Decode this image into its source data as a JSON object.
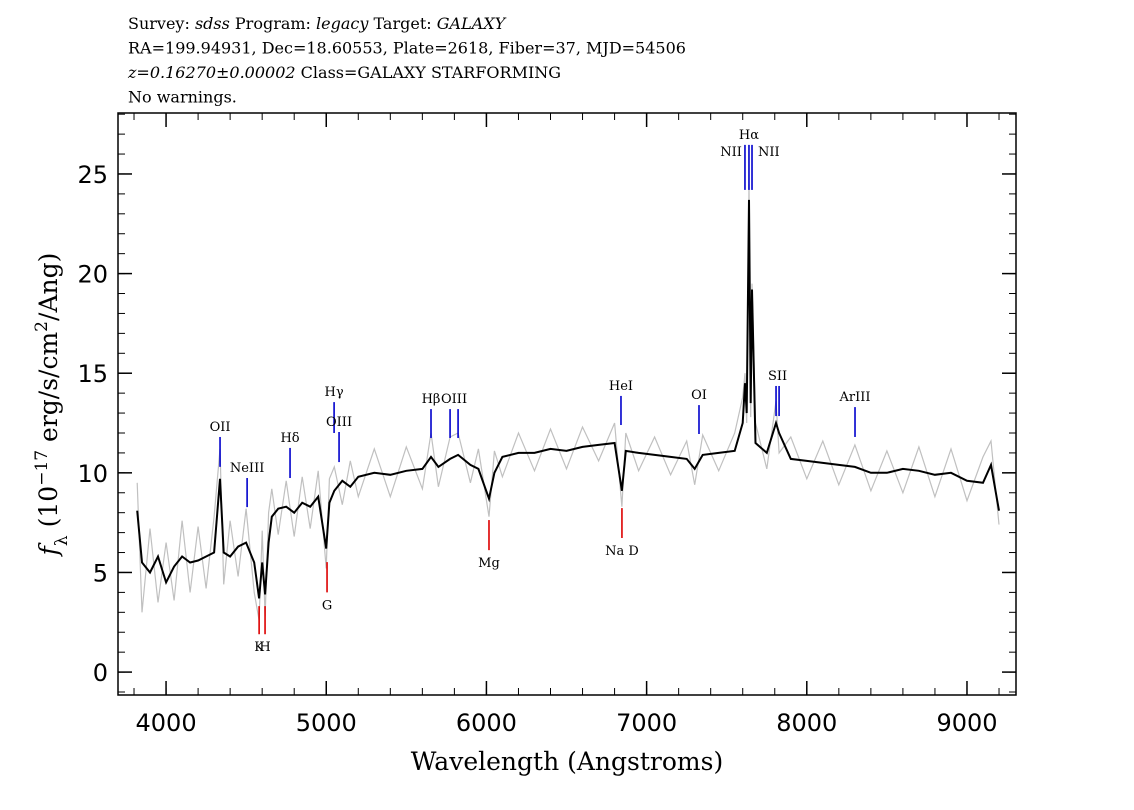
{
  "chart_data": {
    "type": "line",
    "header": [
      [
        {
          "text": "Survey: "
        },
        {
          "text": "sdss",
          "italic": true
        },
        {
          "text": " Program: "
        },
        {
          "text": "legacy",
          "italic": true
        },
        {
          "text": " Target: "
        },
        {
          "text": "GALAXY",
          "italic": true
        }
      ],
      [
        {
          "text": "RA=199.94931, Dec=18.60553, Plate=2618, Fiber=37, MJD=54506"
        }
      ],
      [
        {
          "text": "z=0.16270±0.00002",
          "italic": true
        },
        {
          "text": " Class=GALAXY STARFORMING"
        }
      ],
      [
        {
          "text": "No warnings."
        }
      ]
    ],
    "xlabel": "Wavelength (Angstroms)",
    "ylabel": [
      {
        "text": "f",
        "italic": true
      },
      {
        "text": "λ",
        "shift": "sub"
      },
      {
        "text": " (10"
      },
      {
        "text": "−17",
        "shift": "sup"
      },
      {
        "text": " erg/s/cm"
      },
      {
        "text": "2",
        "shift": "sup"
      },
      {
        "text": "/Ang)"
      }
    ],
    "xlim": [
      3700,
      9306
    ],
    "ylim": [
      -1.15,
      28.06
    ],
    "xticks": [
      4000,
      5000,
      6000,
      7000,
      8000,
      9000
    ],
    "yticks": [
      0,
      5,
      10,
      15,
      20,
      25
    ],
    "xminor": 200,
    "yminor": 1,
    "x": [
      3820,
      3850,
      3900,
      3950,
      4000,
      4050,
      4100,
      4150,
      4200,
      4250,
      4300,
      4337,
      4360,
      4400,
      4450,
      4500,
      4550,
      4581,
      4600,
      4618,
      4640,
      4660,
      4700,
      4750,
      4800,
      4850,
      4900,
      4950,
      5000,
      5020,
      5050,
      5100,
      5150,
      5200,
      5300,
      5400,
      5500,
      5600,
      5654,
      5700,
      5773,
      5823,
      5900,
      5950,
      6016,
      6050,
      6100,
      6200,
      6300,
      6400,
      6500,
      6600,
      6700,
      6800,
      6846,
      6870,
      6950,
      7050,
      7150,
      7250,
      7300,
      7350,
      7450,
      7550,
      7600,
      7614,
      7625,
      7639,
      7650,
      7658,
      7680,
      7750,
      7808,
      7827,
      7900,
      8000,
      8100,
      8200,
      8300,
      8400,
      8500,
      8600,
      8700,
      8800,
      8900,
      9000,
      9100,
      9150,
      9200
    ],
    "series": [
      {
        "name": "flux-error-envelope",
        "color": "#c0c0c0",
        "values": [
          9.5,
          3.0,
          7.2,
          3.5,
          6.5,
          3.6,
          7.6,
          4.0,
          7.3,
          4.2,
          7.8,
          11.2,
          4.4,
          7.6,
          4.8,
          8.2,
          4.0,
          2.6,
          7.1,
          2.8,
          8.0,
          9.2,
          6.9,
          9.6,
          6.8,
          9.8,
          7.2,
          10.1,
          5.2,
          9.7,
          10.3,
          8.4,
          10.6,
          8.8,
          11.2,
          8.8,
          11.3,
          9.2,
          12.0,
          9.3,
          11.8,
          12.0,
          9.5,
          11.2,
          7.8,
          11.1,
          9.8,
          12.0,
          10.1,
          12.2,
          10.2,
          12.3,
          10.6,
          12.5,
          8.3,
          12.0,
          10.1,
          11.8,
          9.9,
          11.6,
          9.4,
          11.9,
          10.1,
          12.0,
          13.8,
          15.0,
          12.5,
          24.5,
          12.8,
          19.5,
          12.5,
          10.2,
          13.6,
          11.0,
          11.8,
          9.7,
          11.6,
          9.4,
          11.4,
          9.1,
          11.1,
          9.0,
          11.3,
          8.8,
          11.2,
          8.6,
          10.8,
          11.6,
          7.4
        ]
      },
      {
        "name": "flux",
        "color": "#000000",
        "values": [
          8.1,
          5.5,
          5.0,
          5.8,
          4.5,
          5.3,
          5.8,
          5.5,
          5.6,
          5.8,
          6.0,
          9.7,
          6.0,
          5.8,
          6.3,
          6.5,
          5.5,
          3.7,
          5.5,
          3.9,
          6.5,
          7.8,
          8.2,
          8.3,
          8.0,
          8.5,
          8.3,
          8.8,
          6.2,
          8.5,
          9.1,
          9.6,
          9.3,
          9.8,
          10.0,
          9.9,
          10.1,
          10.2,
          10.8,
          10.3,
          10.7,
          10.9,
          10.4,
          10.2,
          8.7,
          10.0,
          10.8,
          11.0,
          11.0,
          11.2,
          11.1,
          11.3,
          11.4,
          11.5,
          9.1,
          11.1,
          11.0,
          10.9,
          10.8,
          10.7,
          10.2,
          10.9,
          11.0,
          11.1,
          12.5,
          14.5,
          13.0,
          23.7,
          13.5,
          19.2,
          11.5,
          11.0,
          12.5,
          12.0,
          10.7,
          10.6,
          10.5,
          10.4,
          10.3,
          10.0,
          10.0,
          10.2,
          10.1,
          9.9,
          10.0,
          9.6,
          9.5,
          10.4,
          8.1
        ]
      }
    ],
    "lines": [
      {
        "label": "OII",
        "wavelengths": [
          4337
        ],
        "color": "#0000cc",
        "y": [
          10.3,
          11.8
        ],
        "label_side": "top"
      },
      {
        "label": "NeIII",
        "wavelengths": [
          4506
        ],
        "color": "#0000cc",
        "y": [
          8.28,
          9.74
        ],
        "label_side": "top"
      },
      {
        "label": "Hδ",
        "wavelengths": [
          4774
        ],
        "color": "#0000cc",
        "y": [
          9.74,
          11.25
        ],
        "label_side": "top"
      },
      {
        "label": "Hγ",
        "wavelengths": [
          5049
        ],
        "color": "#0000cc",
        "y": [
          12.0,
          13.55
        ],
        "label_side": "top"
      },
      {
        "label": "OIII",
        "wavelengths": [
          5080
        ],
        "color": "#0000cc",
        "y": [
          10.54,
          12.05
        ],
        "label_side": "top"
      },
      {
        "label": "Hβ",
        "wavelengths": [
          5654
        ],
        "color": "#0000cc",
        "y": [
          11.75,
          13.2
        ],
        "label_side": "top"
      },
      {
        "label": "OIII",
        "wavelengths": [
          5773,
          5823
        ],
        "color": "#0000cc",
        "y": [
          11.75,
          13.2
        ],
        "label_side": "top"
      },
      {
        "label": "HeI",
        "wavelengths": [
          6840
        ],
        "color": "#0000cc",
        "y": [
          12.4,
          13.86
        ],
        "label_side": "top"
      },
      {
        "label": "OI",
        "wavelengths": [
          7327
        ],
        "color": "#0000cc",
        "y": [
          11.95,
          13.4
        ],
        "label_side": "top"
      },
      {
        "label": "NII",
        "wavelengths": [
          7614
        ],
        "color": "#0000cc",
        "y": [
          24.2,
          26.46
        ],
        "label_side": "left"
      },
      {
        "label": "Hα",
        "wavelengths": [
          7639
        ],
        "color": "#0000cc",
        "y": [
          24.2,
          26.46
        ],
        "label_side": "top"
      },
      {
        "label": "NII",
        "wavelengths": [
          7658
        ],
        "color": "#0000cc",
        "y": [
          24.2,
          26.46
        ],
        "label_side": "right"
      },
      {
        "label": "SII",
        "wavelengths": [
          7808,
          7827
        ],
        "color": "#0000cc",
        "y": [
          12.85,
          14.36
        ],
        "label_side": "top"
      },
      {
        "label": "ArIII",
        "wavelengths": [
          8301
        ],
        "color": "#0000cc",
        "y": [
          11.8,
          13.3
        ],
        "label_side": "top"
      },
      {
        "label": "K",
        "wavelengths": [
          4581
        ],
        "color": "#dd0000",
        "y": [
          1.9,
          3.31
        ],
        "label_side": "bottom"
      },
      {
        "label": "H",
        "wavelengths": [
          4618
        ],
        "color": "#dd0000",
        "y": [
          1.9,
          3.31
        ],
        "label_side": "bottom"
      },
      {
        "label": "G",
        "wavelengths": [
          5005
        ],
        "color": "#dd0000",
        "y": [
          4.0,
          5.52
        ],
        "label_side": "bottom"
      },
      {
        "label": "Mg",
        "wavelengths": [
          6016
        ],
        "color": "#dd0000",
        "y": [
          6.12,
          7.63
        ],
        "label_side": "bottom"
      },
      {
        "label": "Na D",
        "wavelengths": [
          6846
        ],
        "color": "#dd0000",
        "y": [
          6.73,
          8.23
        ],
        "label_side": "bottom"
      }
    ]
  }
}
